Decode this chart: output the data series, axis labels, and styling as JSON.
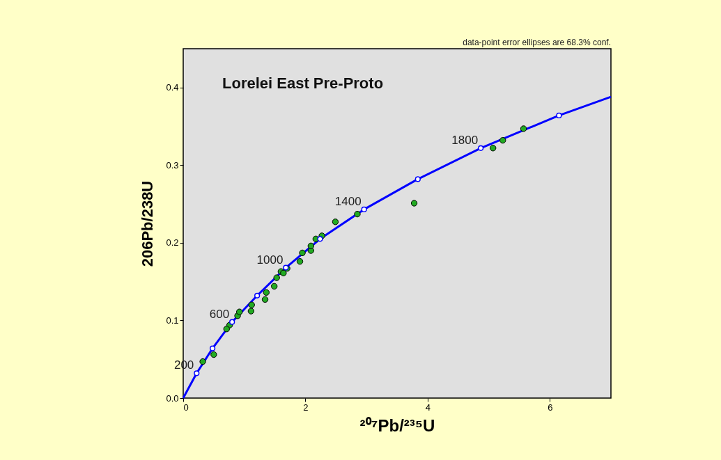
{
  "chart_data": {
    "type": "scatter",
    "title": "Lorelei East Pre-Proto",
    "xlabel": "²⁰⁷Pb/²³⁵U",
    "ylabel": "206Pb/238U",
    "xlim": [
      0,
      7
    ],
    "xticks": [
      0,
      2,
      4,
      6
    ],
    "ylim": [
      0,
      0.45
    ],
    "yticks": [
      {
        "value": 0,
        "label": "0.0"
      },
      0.1,
      0.2,
      0.3,
      0.4
    ],
    "grid": false,
    "series": [
      {
        "type": "line",
        "color": "#0000ff",
        "marker": "none",
        "line_style": "solid",
        "x": [
          0,
          0.22,
          0.48,
          0.8,
          1.21,
          1.68,
          2.24,
          2.96,
          3.84,
          4.87,
          6.15,
          7.0
        ],
        "values": [
          0,
          0.032,
          0.064,
          0.098,
          0.132,
          0.168,
          0.205,
          0.243,
          0.282,
          0.322,
          0.364,
          0.388
        ]
      },
      {
        "color": "#22aa22",
        "marker": "circle",
        "x": [
          0.89,
          1.53,
          1.6,
          1.64,
          1.7,
          1.91,
          1.95,
          2.09,
          2.09,
          2.17,
          2.27,
          1.49,
          1.36,
          1.34,
          1.12,
          1.11,
          0.92,
          0.76,
          0.71,
          0.5,
          0.32,
          2.49,
          2.85,
          3.78,
          5.07,
          5.23,
          5.57
        ],
        "values": [
          0.106,
          0.155,
          0.163,
          0.161,
          0.167,
          0.176,
          0.187,
          0.19,
          0.196,
          0.205,
          0.209,
          0.144,
          0.136,
          0.127,
          0.12,
          0.112,
          0.111,
          0.094,
          0.089,
          0.056,
          0.047,
          0.227,
          0.237,
          0.251,
          0.322,
          0.332,
          0.347
        ]
      },
      {
        "color": "#ffffff",
        "marker": "circle",
        "x": [
          0.22,
          0.48,
          0.8,
          1.21,
          1.68,
          2.24,
          2.96,
          3.84,
          4.87,
          6.15
        ],
        "values": [
          0.032,
          0.064,
          0.098,
          0.132,
          0.168,
          0.205,
          0.243,
          0.282,
          0.322,
          0.364
        ]
      }
    ],
    "annotations": [
      {
        "text": "200",
        "x": 0.22,
        "y": 0.032
      },
      {
        "text": "600",
        "x": 0.8,
        "y": 0.098
      },
      {
        "text": "1000",
        "x": 1.68,
        "y": 0.168
      },
      {
        "text": "1400",
        "x": 2.96,
        "y": 0.243
      },
      {
        "text": "1800",
        "x": 4.87,
        "y": 0.322
      },
      "data-point error ellipses are 68.3% conf."
    ]
  }
}
